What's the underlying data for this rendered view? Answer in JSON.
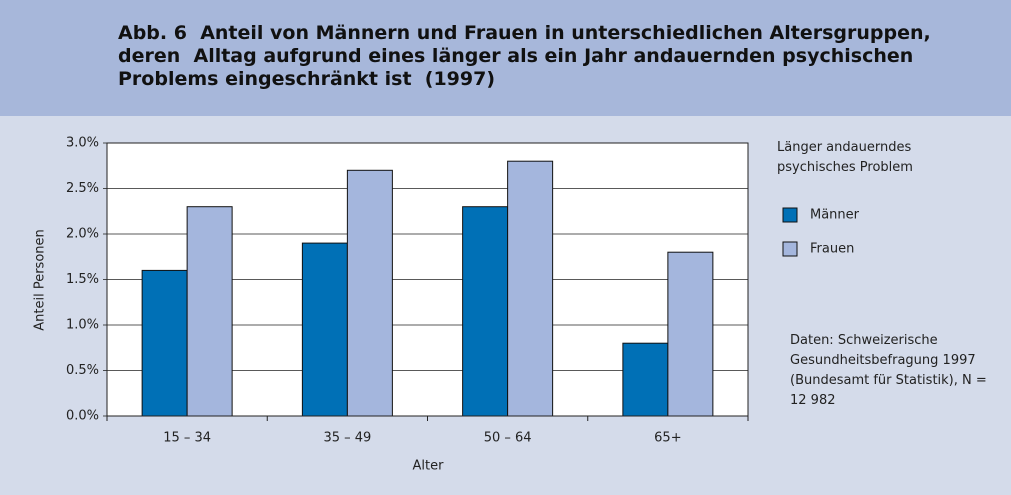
{
  "chart_data": {
    "type": "bar",
    "title": [
      "Abb. 6  Anteil von Männern und Frauen in unterschiedlichen Altersgruppen,",
      "deren  Alltag aufgrund eines länger als ein Jahr andauernden psychischen",
      "Problems eingeschränkt ist  (1997)"
    ],
    "x_label": "Alter",
    "y_label": "Anteil Personen",
    "legend_title": "Länger andauerndes psychisches Problem",
    "note": "Daten: Schweizerische Gesundheitsbefragung 1997 (Bundesamt für Statistik), N = 12 982",
    "categories": [
      "15 – 34",
      "35 – 49",
      "50 – 64",
      "65+"
    ],
    "series": [
      {
        "name": "Männer",
        "color": "#0070b6",
        "values": [
          1.6,
          1.9,
          2.3,
          0.8
        ]
      },
      {
        "name": "Frauen",
        "color": "#a4b6dd",
        "values": [
          2.3,
          2.7,
          2.8,
          1.8
        ]
      }
    ],
    "ylim": [
      0,
      3
    ],
    "yticks": [
      {
        "value": 0,
        "label": "0.0%"
      },
      {
        "value": 0.5,
        "label": "0.5%"
      },
      {
        "value": 1,
        "label": "1.0%"
      },
      {
        "value": 1.5,
        "label": "1.5%"
      },
      {
        "value": 2,
        "label": "2.0%"
      },
      {
        "value": 2.5,
        "label": "2.5%"
      },
      {
        "value": 3,
        "label": "3.0%"
      }
    ],
    "grid": true
  }
}
